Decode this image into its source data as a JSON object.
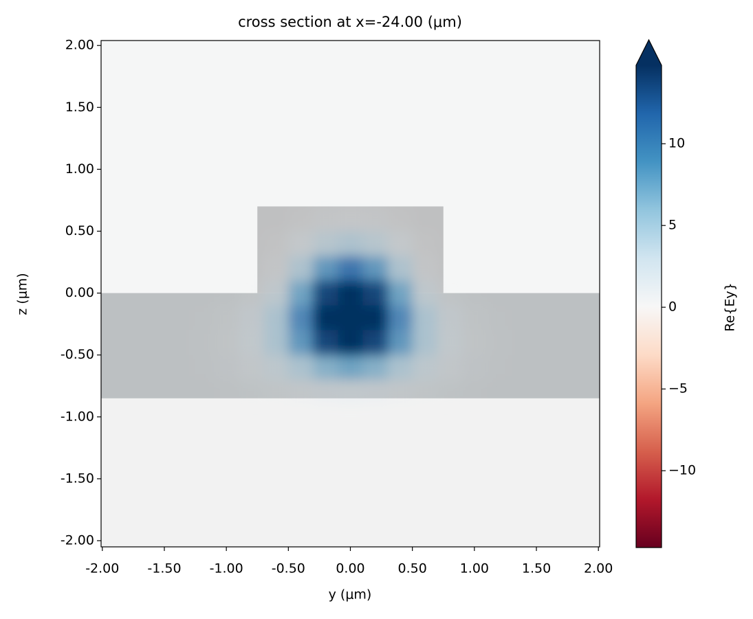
{
  "chart_data": {
    "type": "heatmap",
    "title": "cross section at x=-24.00 (μm)",
    "x_label": "y (μm)",
    "y_label": "z (μm)",
    "colorbar_label": "Re{Ey}",
    "xlim": [
      -2.01,
      2.01
    ],
    "ylim": [
      -2.05,
      2.04
    ],
    "xticks": [
      {
        "value": -2,
        "label": "-2.00"
      },
      {
        "value": -1.5,
        "label": "-1.50"
      },
      {
        "value": -1,
        "label": "-1.00"
      },
      {
        "value": -0.5,
        "label": "-0.50"
      },
      {
        "value": 0,
        "label": "0.00"
      },
      {
        "value": 0.5,
        "label": "0.50"
      },
      {
        "value": 1,
        "label": "1.00"
      },
      {
        "value": 1.5,
        "label": "1.50"
      },
      {
        "value": 2,
        "label": "2.00"
      }
    ],
    "yticks": [
      {
        "value": -2,
        "label": "-2.00"
      },
      {
        "value": -1.5,
        "label": "-1.50"
      },
      {
        "value": -1,
        "label": "-1.00"
      },
      {
        "value": -0.5,
        "label": "-0.50"
      },
      {
        "value": 0,
        "label": "0.00"
      },
      {
        "value": 0.5,
        "label": "0.50"
      },
      {
        "value": 1,
        "label": "1.00"
      },
      {
        "value": 1.5,
        "label": "1.50"
      },
      {
        "value": 2,
        "label": "2.00"
      }
    ],
    "clim": [
      -14.7,
      14.8
    ],
    "cticks": [
      {
        "value": -10,
        "label": "−10"
      },
      {
        "value": -5,
        "label": "−5"
      },
      0,
      5,
      10
    ],
    "colorscale": [
      "#67001f",
      "#b2182b",
      "#d6604d",
      "#f4a582",
      "#fddbc7",
      "#f7f7f7",
      "#d1e5f0",
      "#92c5de",
      "#4393c3",
      "#2166ac",
      "#053061"
    ],
    "background": [
      {
        "z": [
          0,
          2.04
        ],
        "color": "#f5f6f6"
      },
      {
        "z": [
          -2.05,
          0
        ],
        "color": "#f2f2f2"
      }
    ],
    "structures": [
      {
        "y": [
          -2.01,
          2.01
        ],
        "z": [
          -0.85,
          0
        ],
        "color": "#bcc0c2"
      },
      {
        "y": [
          -0.75,
          0.75
        ],
        "z": [
          0,
          0.7
        ],
        "color": "#bfc0c1"
      }
    ],
    "x": [
      -1.2,
      -1.0,
      -0.8,
      -0.6,
      -0.4,
      -0.2,
      0.0,
      0.2,
      0.4,
      0.6,
      0.8,
      1.0,
      1.2
    ],
    "y": [
      0.8,
      0.6,
      0.4,
      0.2,
      0.0,
      -0.2,
      -0.4,
      -0.6,
      -0.8,
      -1.0
    ],
    "values": [
      [
        0,
        0,
        0,
        0,
        0,
        0.3,
        0.5,
        0.3,
        0,
        0,
        0,
        0,
        0
      ],
      [
        0,
        0,
        0,
        0,
        0.5,
        1.5,
        2,
        1.5,
        0.5,
        0,
        0,
        0,
        0
      ],
      [
        0,
        0,
        0,
        0.5,
        3,
        5,
        6,
        5,
        3,
        0.5,
        0,
        0,
        0
      ],
      [
        0,
        0,
        0.2,
        1.5,
        6,
        10,
        12,
        10,
        6,
        1.5,
        0.2,
        0,
        0
      ],
      [
        0,
        0.2,
        1,
        4,
        9,
        14,
        16,
        14,
        9,
        4,
        1,
        0.2,
        0
      ],
      [
        0.2,
        0.8,
        2.5,
        6,
        11,
        16,
        18,
        16,
        11,
        6,
        2.5,
        0.8,
        0.2
      ],
      [
        0.3,
        1,
        3,
        6,
        10,
        14,
        15,
        14,
        10,
        6,
        3,
        1,
        0.3
      ],
      [
        0.2,
        0.7,
        2,
        4,
        6,
        8,
        9,
        8,
        6,
        4,
        2,
        0.7,
        0.2
      ],
      [
        0,
        0.2,
        0.6,
        1.2,
        2,
        2.5,
        3,
        2.5,
        2,
        1.2,
        0.6,
        0.2,
        0
      ],
      [
        0,
        0,
        0,
        0.2,
        0.3,
        0.4,
        0.5,
        0.4,
        0.3,
        0.2,
        0,
        0,
        0
      ]
    ]
  }
}
